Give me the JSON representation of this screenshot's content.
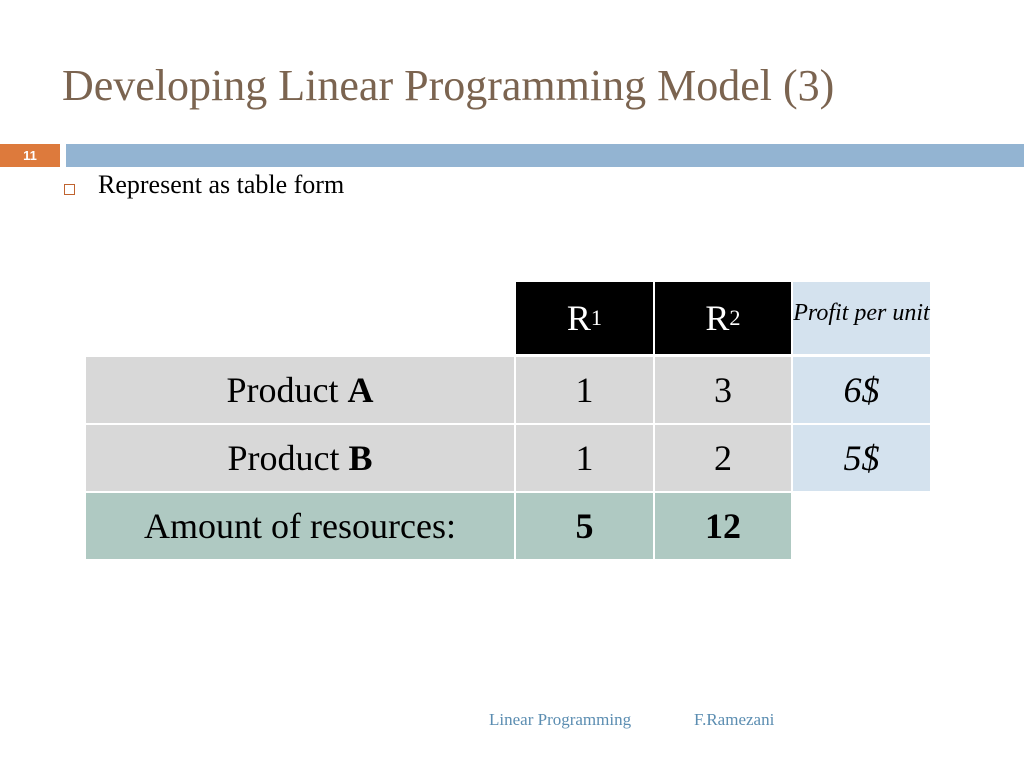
{
  "slide": {
    "title": "Developing Linear Programming Model (3)",
    "number": "11"
  },
  "bullets": [
    {
      "text": "Represent as table form"
    }
  ],
  "table": {
    "header": {
      "col1_letter": "R",
      "col1_sub": "1",
      "col2_letter": "R",
      "col2_sub": "2",
      "profit": "Profit per unit"
    },
    "rows": [
      {
        "label_prefix": "Product ",
        "label_bold": "A",
        "r1": "1",
        "r2": "3",
        "profit": "6$"
      },
      {
        "label_prefix": "Product ",
        "label_bold": "B",
        "r1": "1",
        "r2": "2",
        "profit": "5$"
      }
    ],
    "totals": {
      "label": "Amount of resources:",
      "r1": "5",
      "r2": "12"
    }
  },
  "footer": {
    "left": "Linear Programming",
    "right": "F.Ramezani"
  }
}
